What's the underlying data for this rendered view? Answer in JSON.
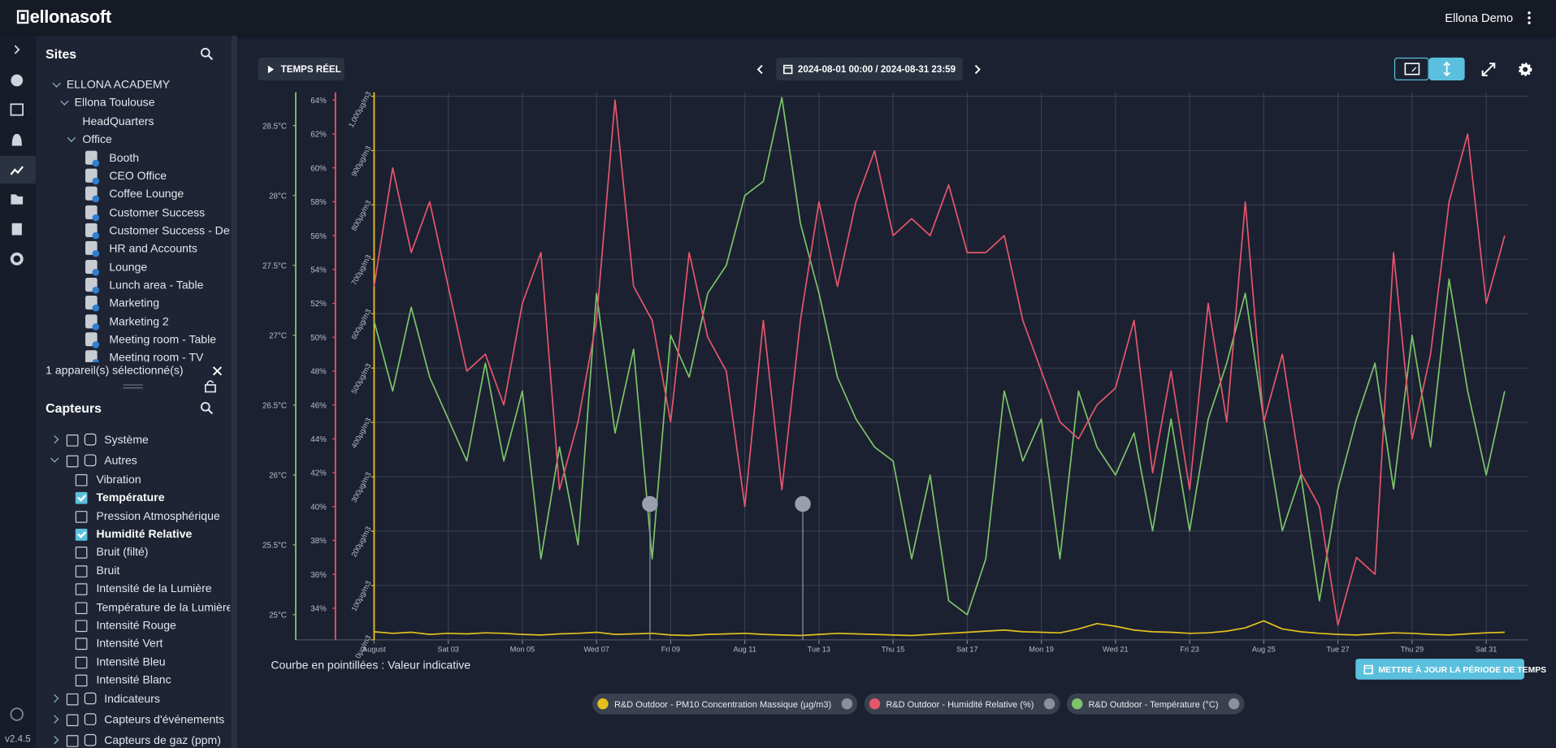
{
  "header": {
    "logo": "ellonasoft",
    "user": "Ellona Demo"
  },
  "version": "v2.4.5",
  "sites": {
    "title": "Sites",
    "nodes": [
      "ELLONA ACADEMY",
      "Ellona Toulouse",
      "HeadQuarters",
      "Office"
    ],
    "rooms": [
      "Booth",
      "CEO Office",
      "Coffee Lounge",
      "Customer Success",
      "Customer Success - Desk",
      "HR and Accounts",
      "Lounge",
      "Lunch area - Table",
      "Marketing",
      "Marketing 2",
      "Meeting room - Table",
      "Meeting room - TV"
    ]
  },
  "selection": "1 appareil(s) sélectionné(s)",
  "sensors": {
    "title": "Capteurs",
    "groups_top": [
      "Système",
      "Autres"
    ],
    "items": [
      {
        "label": "Vibration",
        "checked": false
      },
      {
        "label": "Température",
        "checked": true
      },
      {
        "label": "Pression Atmosphérique",
        "checked": false
      },
      {
        "label": "Humidité Relative",
        "checked": true
      },
      {
        "label": "Bruit (filté)",
        "checked": false
      },
      {
        "label": "Bruit",
        "checked": false
      },
      {
        "label": "Intensité de la Lumière",
        "checked": false
      },
      {
        "label": "Température de la Lumière",
        "checked": false
      },
      {
        "label": "Intensité Rouge",
        "checked": false
      },
      {
        "label": "Intensité Vert",
        "checked": false
      },
      {
        "label": "Intensité Bleu",
        "checked": false
      },
      {
        "label": "Intensité Blanc",
        "checked": false
      }
    ],
    "groups_bottom": [
      "Indicateurs",
      "Capteurs d'événements",
      "Capteurs de gaz (ppm)"
    ]
  },
  "toolbar": {
    "realtime": "TEMPS RÉEL",
    "period": "2024-08-01 00:00 / 2024-08-31 23:59",
    "update": "METTRE À JOUR LA PÉRIODE DE TEMPS"
  },
  "note": "Courbe en pointillées : Valeur indicative",
  "chart_data": {
    "type": "line",
    "grid": true,
    "x": [
      "2024-08-01 00:00",
      "2024-08-01 12:00",
      "2024-08-02 00:00",
      "2024-08-02 12:00",
      "2024-08-03 00:00",
      "2024-08-03 12:00",
      "2024-08-04 00:00",
      "2024-08-04 12:00",
      "2024-08-05 00:00",
      "2024-08-05 12:00",
      "2024-08-06 00:00",
      "2024-08-06 12:00",
      "2024-08-07 00:00",
      "2024-08-07 12:00",
      "2024-08-08 00:00",
      "2024-08-08 12:00",
      "2024-08-09 00:00",
      "2024-08-09 12:00",
      "2024-08-10 00:00",
      "2024-08-10 12:00",
      "2024-08-11 00:00",
      "2024-08-11 12:00",
      "2024-08-12 00:00",
      "2024-08-12 12:00",
      "2024-08-13 00:00",
      "2024-08-13 12:00",
      "2024-08-14 00:00",
      "2024-08-14 12:00",
      "2024-08-15 00:00",
      "2024-08-15 12:00",
      "2024-08-16 00:00",
      "2024-08-16 12:00",
      "2024-08-17 00:00",
      "2024-08-17 12:00",
      "2024-08-18 00:00",
      "2024-08-18 12:00",
      "2024-08-19 00:00",
      "2024-08-19 12:00",
      "2024-08-20 00:00",
      "2024-08-20 12:00",
      "2024-08-21 00:00",
      "2024-08-21 12:00",
      "2024-08-22 00:00",
      "2024-08-22 12:00",
      "2024-08-23 00:00",
      "2024-08-23 12:00",
      "2024-08-24 00:00",
      "2024-08-24 12:00",
      "2024-08-25 00:00",
      "2024-08-25 12:00",
      "2024-08-26 00:00",
      "2024-08-26 12:00",
      "2024-08-27 00:00",
      "2024-08-27 12:00",
      "2024-08-28 00:00",
      "2024-08-28 12:00",
      "2024-08-29 00:00",
      "2024-08-29 12:00",
      "2024-08-30 00:00",
      "2024-08-30 12:00",
      "2024-08-31 00:00",
      "2024-08-31 12:00"
    ],
    "xlim": [
      "2024-08-01 00:00",
      "2024-08-31 23:59"
    ],
    "xticks": [
      {
        "value": "2024-08-01 00:00",
        "label": "August"
      },
      {
        "value": "2024-08-03 00:00",
        "label": "Sat 03"
      },
      {
        "value": "2024-08-05 00:00",
        "label": "Mon 05"
      },
      {
        "value": "2024-08-07 00:00",
        "label": "Wed 07"
      },
      {
        "value": "2024-08-09 00:00",
        "label": "Fri 09"
      },
      {
        "value": "2024-08-11 00:00",
        "label": "Aug 11"
      },
      {
        "value": "2024-08-13 00:00",
        "label": "Tue 13"
      },
      {
        "value": "2024-08-15 00:00",
        "label": "Thu 15"
      },
      {
        "value": "2024-08-17 00:00",
        "label": "Sat 17"
      },
      {
        "value": "2024-08-19 00:00",
        "label": "Mon 19"
      },
      {
        "value": "2024-08-21 00:00",
        "label": "Wed 21"
      },
      {
        "value": "2024-08-23 00:00",
        "label": "Fri 23"
      },
      {
        "value": "2024-08-25 00:00",
        "label": "Aug 25"
      },
      {
        "value": "2024-08-27 00:00",
        "label": "Tue 27"
      },
      {
        "value": "2024-08-29 00:00",
        "label": "Thu 29"
      },
      {
        "value": "2024-08-31 00:00",
        "label": "Sat 31"
      }
    ],
    "ylim": [
      24.82,
      28.71
    ],
    "yticks": [
      {
        "value": 25,
        "label": "25°C"
      },
      {
        "value": 25.5,
        "label": "25.5°C"
      },
      {
        "value": 26,
        "label": "26°C"
      },
      {
        "value": 26.5,
        "label": "26.5°C"
      },
      {
        "value": 27,
        "label": "27°C"
      },
      {
        "value": 27.5,
        "label": "27.5°C"
      },
      {
        "value": 28,
        "label": "28°C"
      },
      {
        "value": 28.5,
        "label": "28.5°C"
      }
    ],
    "y2lim": [
      32.13,
      64.23
    ],
    "y2ticks": [
      {
        "value": 34,
        "label": "34%"
      },
      {
        "value": 36,
        "label": "36%"
      },
      {
        "value": 38,
        "label": "38%"
      },
      {
        "value": 40,
        "label": "40%"
      },
      {
        "value": 42,
        "label": "42%"
      },
      {
        "value": 44,
        "label": "44%"
      },
      {
        "value": 46,
        "label": "46%"
      },
      {
        "value": 48,
        "label": "48%"
      },
      {
        "value": 50,
        "label": "50%"
      },
      {
        "value": 52,
        "label": "52%"
      },
      {
        "value": 54,
        "label": "54%"
      },
      {
        "value": 56,
        "label": "56%"
      },
      {
        "value": 58,
        "label": "58%"
      },
      {
        "value": 60,
        "label": "60%"
      },
      {
        "value": 62,
        "label": "62%"
      },
      {
        "value": 64,
        "label": "64%"
      }
    ],
    "y3lim": [
      0,
      1000
    ],
    "y3ticks": [
      {
        "value": 0,
        "label": "0µg/m3"
      },
      {
        "value": 100,
        "label": "100µg/m3"
      },
      {
        "value": 200,
        "label": "200µg/m3"
      },
      {
        "value": 300,
        "label": "300µg/m3"
      },
      {
        "value": 400,
        "label": "400µg/m3"
      },
      {
        "value": 500,
        "label": "500µg/m3"
      },
      {
        "value": 600,
        "label": "600µg/m3"
      },
      {
        "value": 700,
        "label": "700µg/m3"
      },
      {
        "value": 800,
        "label": "800µg/m3"
      },
      {
        "value": 900,
        "label": "900µg/m3"
      },
      {
        "value": 1000,
        "label": "1,000µg/m3"
      }
    ],
    "series": [
      {
        "name": "R&D Outdoor - PM10 Concentration Massique (µg/m3)",
        "color": "#e3c020",
        "axis": "y3",
        "values": [
          15,
          12,
          14,
          10,
          12,
          11,
          13,
          12,
          10,
          9,
          11,
          12,
          14,
          10,
          11,
          12,
          9,
          8,
          10,
          11,
          12,
          10,
          9,
          8,
          10,
          12,
          11,
          10,
          9,
          8,
          10,
          12,
          14,
          16,
          18,
          15,
          14,
          13,
          20,
          30,
          25,
          18,
          15,
          14,
          12,
          13,
          16,
          22,
          35,
          20,
          15,
          12,
          10,
          9,
          11,
          13,
          12,
          10,
          9,
          11,
          13,
          14
        ]
      },
      {
        "name": "R&D Outdoor - Humidité Relative (%)",
        "color": "#e5566c",
        "axis": "y2",
        "values": [
          53,
          60,
          55,
          58,
          53,
          48,
          49,
          46,
          52,
          55,
          41,
          45,
          51,
          64,
          53,
          51,
          45,
          55,
          50,
          48,
          40,
          51,
          41,
          51,
          58,
          53,
          58,
          61,
          56,
          57,
          56,
          59,
          55,
          55,
          56,
          51,
          48,
          45,
          44,
          46,
          47,
          51,
          42,
          48,
          41,
          52,
          45,
          58,
          45,
          49,
          42,
          40,
          33,
          37,
          36,
          55,
          44,
          49,
          58,
          62,
          52,
          56
        ]
      },
      {
        "name": "R&D Outdoor - Température (°C)",
        "color": "#7cc36a",
        "axis": "y",
        "values": [
          27.1,
          26.6,
          27.2,
          26.7,
          26.4,
          26.1,
          26.8,
          26.1,
          26.6,
          25.4,
          26.2,
          25.5,
          27.3,
          26.3,
          26.9,
          25.4,
          27.0,
          26.7,
          27.3,
          27.5,
          28.0,
          28.1,
          28.7,
          27.8,
          27.3,
          26.7,
          26.4,
          26.2,
          26.1,
          25.4,
          26.0,
          25.1,
          25.0,
          25.4,
          26.6,
          26.1,
          26.4,
          25.4,
          26.6,
          26.2,
          26.0,
          26.3,
          25.6,
          26.4,
          25.6,
          26.4,
          26.8,
          27.3,
          26.4,
          25.6,
          26.0,
          25.1,
          25.9,
          26.4,
          26.8,
          25.9,
          27.0,
          26.2,
          27.4,
          26.6,
          26.0,
          26.6
        ]
      }
    ]
  }
}
